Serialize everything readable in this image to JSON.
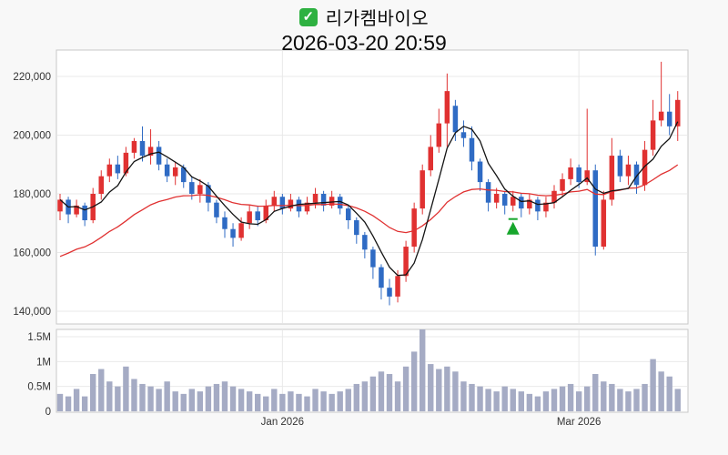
{
  "header": {
    "check_glyph": "✓",
    "icon_color": "#2eb141",
    "title": "리가켐바이오",
    "datetime": "2026-03-20 20:59"
  },
  "chart_data": {
    "type": "candlestick",
    "title": "리가켐바이오",
    "subtitle": "2026-03-20 20:59",
    "legend_position": "none",
    "grid": true,
    "y_axis": {
      "min": 136000,
      "max": 229000,
      "ticks": [
        {
          "v": 220000,
          "label": "220,000"
        },
        {
          "v": 200000,
          "label": "200,000"
        },
        {
          "v": 180000,
          "label": "180,000"
        },
        {
          "v": 160000,
          "label": "160,000"
        },
        {
          "v": 140000,
          "label": "140,000"
        }
      ]
    },
    "volume_axis": {
      "max": 1650000,
      "ticks": [
        {
          "v": 1500000,
          "label": "1.5M"
        },
        {
          "v": 1000000,
          "label": "1M"
        },
        {
          "v": 500000,
          "label": "0.5M"
        },
        {
          "v": 0,
          "label": "0"
        }
      ]
    },
    "x_ticks": [
      {
        "label": "Jan 2026",
        "index": 27
      },
      {
        "label": "Mar 2026",
        "index": 63
      }
    ],
    "colors": {
      "up": "#e03131",
      "down": "#2f6bc4",
      "ma_fast": "#141414",
      "ma_slow": "#e03131",
      "volume": "#a5abc4",
      "marker": "#17a62c",
      "grid": "#e9e9e9",
      "panel_border": "#c9c9c9",
      "axis_text": "#333333"
    },
    "ma_fast_period": 5,
    "ma_slow_alpha": 0.08,
    "ma_slow_seed": 157000,
    "marker": {
      "index": 55,
      "price": 168000
    },
    "candles": [
      [
        174000,
        180000,
        171000,
        178000,
        350000
      ],
      [
        178000,
        179000,
        170000,
        173000,
        300000
      ],
      [
        173000,
        178000,
        172000,
        176000,
        450000
      ],
      [
        176000,
        177000,
        169000,
        171000,
        300000
      ],
      [
        171000,
        182000,
        170000,
        180000,
        750000
      ],
      [
        180000,
        188000,
        178000,
        186000,
        850000
      ],
      [
        186000,
        192000,
        184000,
        190000,
        600000
      ],
      [
        190000,
        193000,
        185000,
        187000,
        500000
      ],
      [
        187000,
        196000,
        186000,
        194000,
        900000
      ],
      [
        194000,
        199000,
        192000,
        198000,
        650000
      ],
      [
        198000,
        203000,
        191000,
        193000,
        550000
      ],
      [
        193000,
        202000,
        190000,
        196000,
        500000
      ],
      [
        196000,
        198000,
        188000,
        190000,
        450000
      ],
      [
        190000,
        192000,
        184000,
        186000,
        600000
      ],
      [
        186000,
        191000,
        183000,
        189000,
        400000
      ],
      [
        189000,
        190000,
        182000,
        184000,
        350000
      ],
      [
        184000,
        186000,
        178000,
        180000,
        450000
      ],
      [
        180000,
        185000,
        177000,
        183000,
        400000
      ],
      [
        183000,
        184000,
        174000,
        177000,
        500000
      ],
      [
        177000,
        178000,
        170000,
        172000,
        550000
      ],
      [
        172000,
        174000,
        165000,
        168000,
        600000
      ],
      [
        168000,
        170000,
        162000,
        165000,
        500000
      ],
      [
        165000,
        172000,
        164000,
        170000,
        450000
      ],
      [
        170000,
        176000,
        168000,
        174000,
        400000
      ],
      [
        174000,
        176000,
        169000,
        171000,
        350000
      ],
      [
        171000,
        178000,
        170000,
        176000,
        300000
      ],
      [
        176000,
        181000,
        174000,
        179000,
        450000
      ],
      [
        179000,
        180000,
        173000,
        175000,
        350000
      ],
      [
        175000,
        180000,
        174000,
        178000,
        400000
      ],
      [
        178000,
        179000,
        172000,
        174000,
        350000
      ],
      [
        174000,
        179000,
        173000,
        177000,
        300000
      ],
      [
        177000,
        182000,
        175000,
        180000,
        450000
      ],
      [
        180000,
        181000,
        174000,
        176000,
        400000
      ],
      [
        176000,
        181000,
        175000,
        179000,
        350000
      ],
      [
        179000,
        180000,
        173000,
        175000,
        400000
      ],
      [
        175000,
        176000,
        168000,
        171000,
        450000
      ],
      [
        171000,
        172000,
        163000,
        166000,
        550000
      ],
      [
        166000,
        167000,
        158000,
        161000,
        600000
      ],
      [
        161000,
        162000,
        151000,
        155000,
        700000
      ],
      [
        155000,
        156000,
        144000,
        148000,
        800000
      ],
      [
        148000,
        151000,
        142000,
        145000,
        750000
      ],
      [
        145000,
        154000,
        143000,
        152000,
        600000
      ],
      [
        152000,
        164000,
        150000,
        162000,
        900000
      ],
      [
        162000,
        177000,
        160000,
        175000,
        1200000
      ],
      [
        175000,
        190000,
        173000,
        188000,
        1650000
      ],
      [
        188000,
        200000,
        186000,
        196000,
        950000
      ],
      [
        196000,
        209000,
        194000,
        204000,
        850000
      ],
      [
        204000,
        221000,
        196000,
        215000,
        900000
      ],
      [
        210000,
        212000,
        198000,
        201000,
        800000
      ],
      [
        201000,
        205000,
        196000,
        199000,
        600000
      ],
      [
        199000,
        203000,
        188000,
        191000,
        550000
      ],
      [
        191000,
        192000,
        181000,
        184000,
        500000
      ],
      [
        184000,
        185000,
        174000,
        177000,
        450000
      ],
      [
        177000,
        182000,
        175000,
        180000,
        400000
      ],
      [
        180000,
        181000,
        173000,
        176000,
        500000
      ],
      [
        176000,
        181000,
        174000,
        179000,
        450000
      ],
      [
        179000,
        180000,
        172000,
        175000,
        400000
      ],
      [
        175000,
        180000,
        173000,
        178000,
        350000
      ],
      [
        178000,
        179000,
        171000,
        174000,
        300000
      ],
      [
        174000,
        179000,
        172000,
        177000,
        400000
      ],
      [
        177000,
        183000,
        175000,
        181000,
        450000
      ],
      [
        181000,
        187000,
        179000,
        185000,
        500000
      ],
      [
        185000,
        192000,
        183000,
        189000,
        550000
      ],
      [
        189000,
        190000,
        182000,
        184000,
        400000
      ],
      [
        184000,
        209000,
        183000,
        188000,
        500000
      ],
      [
        188000,
        190000,
        159000,
        162000,
        750000
      ],
      [
        162000,
        181000,
        161000,
        178000,
        600000
      ],
      [
        178000,
        199000,
        176000,
        193000,
        550000
      ],
      [
        193000,
        195000,
        184000,
        186000,
        450000
      ],
      [
        186000,
        193000,
        183000,
        190000,
        400000
      ],
      [
        190000,
        191000,
        180000,
        183000,
        450000
      ],
      [
        183000,
        198000,
        181000,
        195000,
        550000
      ],
      [
        195000,
        212000,
        193000,
        205000,
        1050000
      ],
      [
        205000,
        225000,
        203000,
        208000,
        800000
      ],
      [
        208000,
        214000,
        200000,
        203000,
        700000
      ],
      [
        203000,
        215000,
        198000,
        212000,
        450000
      ]
    ]
  }
}
